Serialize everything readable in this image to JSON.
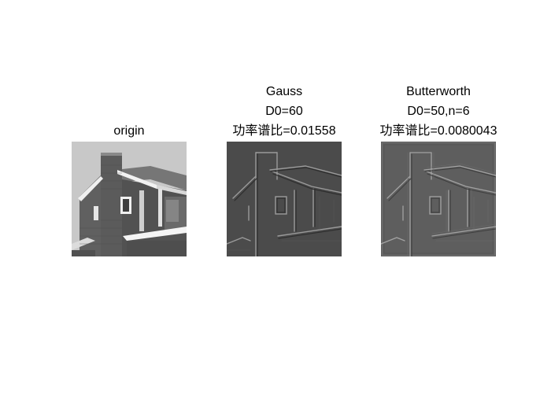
{
  "panels": [
    {
      "id": "origin",
      "title_lines": [
        "origin"
      ]
    },
    {
      "id": "gauss",
      "title_lines": [
        "Gauss",
        "D0=60",
        "功率谱比=0.01558"
      ]
    },
    {
      "id": "butterworth",
      "title_lines": [
        "Butterworth",
        "D0=50,n=6",
        "功率谱比=0.0080043"
      ]
    }
  ],
  "colors": {
    "background": "#ffffff",
    "origin_sky": "#c8c8c8",
    "origin_brick": "#595959",
    "gauss_background": "#4b4b4b",
    "butterworth_background": "#5e5e5e"
  }
}
